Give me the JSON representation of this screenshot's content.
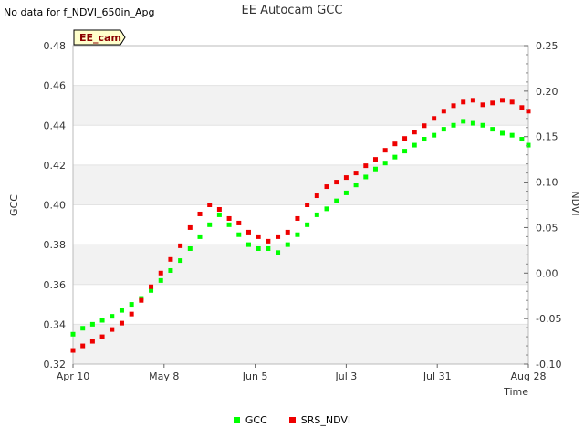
{
  "header": {
    "nodata_text": "No data for f_NDVI_650in_Apg",
    "title": "EE Autocam GCC"
  },
  "site_tag": "EE_cam",
  "colors": {
    "gcc": "#00ff00",
    "ndvi": "#ee0000",
    "band_fill": "#f2f2f2",
    "tag_fill": "#ffffcc",
    "tag_text": "#8b0000"
  },
  "chart_data": {
    "type": "scatter",
    "title": "EE Autocam GCC",
    "xlabel": "Time",
    "ylabel": "GCC",
    "y2label": "NDVI",
    "x_range": [
      "2024-04-10",
      "2024-08-28"
    ],
    "x_ticks": [
      "Apr 10",
      "May 8",
      "Jun 5",
      "Jul 3",
      "Jul 31",
      "Aug 28"
    ],
    "ylim": [
      0.32,
      0.48
    ],
    "y_ticks": [
      "0.32",
      "0.34",
      "0.36",
      "0.38",
      "0.40",
      "0.42",
      "0.44",
      "0.46",
      "0.48"
    ],
    "y2lim": [
      -0.1,
      0.25
    ],
    "y2_ticks": [
      "-0.10",
      "-0.05",
      "0.00",
      "0.05",
      "0.10",
      "0.15",
      "0.20",
      "0.25"
    ],
    "grid": true,
    "legend_position": "bottom",
    "series": [
      {
        "name": "GCC",
        "axis": "left",
        "points": [
          [
            0,
            0.335
          ],
          [
            3,
            0.338
          ],
          [
            6,
            0.34
          ],
          [
            9,
            0.342
          ],
          [
            12,
            0.344
          ],
          [
            15,
            0.347
          ],
          [
            18,
            0.35
          ],
          [
            21,
            0.353
          ],
          [
            24,
            0.357
          ],
          [
            27,
            0.362
          ],
          [
            30,
            0.367
          ],
          [
            33,
            0.372
          ],
          [
            36,
            0.378
          ],
          [
            39,
            0.384
          ],
          [
            42,
            0.39
          ],
          [
            45,
            0.395
          ],
          [
            48,
            0.39
          ],
          [
            51,
            0.385
          ],
          [
            54,
            0.38
          ],
          [
            57,
            0.378
          ],
          [
            60,
            0.378
          ],
          [
            63,
            0.376
          ],
          [
            66,
            0.38
          ],
          [
            69,
            0.385
          ],
          [
            72,
            0.39
          ],
          [
            75,
            0.395
          ],
          [
            78,
            0.398
          ],
          [
            81,
            0.402
          ],
          [
            84,
            0.406
          ],
          [
            87,
            0.41
          ],
          [
            90,
            0.414
          ],
          [
            93,
            0.418
          ],
          [
            96,
            0.421
          ],
          [
            99,
            0.424
          ],
          [
            102,
            0.427
          ],
          [
            105,
            0.43
          ],
          [
            108,
            0.433
          ],
          [
            111,
            0.435
          ],
          [
            114,
            0.438
          ],
          [
            117,
            0.44
          ],
          [
            120,
            0.442
          ],
          [
            123,
            0.441
          ],
          [
            126,
            0.44
          ],
          [
            129,
            0.438
          ],
          [
            132,
            0.436
          ],
          [
            135,
            0.435
          ],
          [
            138,
            0.433
          ],
          [
            140,
            0.43
          ]
        ]
      },
      {
        "name": "SRS_NDVI",
        "axis": "right",
        "points": [
          [
            0,
            -0.085
          ],
          [
            3,
            -0.08
          ],
          [
            6,
            -0.075
          ],
          [
            9,
            -0.07
          ],
          [
            12,
            -0.062
          ],
          [
            15,
            -0.055
          ],
          [
            18,
            -0.045
          ],
          [
            21,
            -0.03
          ],
          [
            24,
            -0.015
          ],
          [
            27,
            0.0
          ],
          [
            30,
            0.015
          ],
          [
            33,
            0.03
          ],
          [
            36,
            0.05
          ],
          [
            39,
            0.065
          ],
          [
            42,
            0.075
          ],
          [
            45,
            0.07
          ],
          [
            48,
            0.06
          ],
          [
            51,
            0.055
          ],
          [
            54,
            0.045
          ],
          [
            57,
            0.04
          ],
          [
            60,
            0.035
          ],
          [
            63,
            0.04
          ],
          [
            66,
            0.045
          ],
          [
            69,
            0.06
          ],
          [
            72,
            0.075
          ],
          [
            75,
            0.085
          ],
          [
            78,
            0.095
          ],
          [
            81,
            0.1
          ],
          [
            84,
            0.105
          ],
          [
            87,
            0.11
          ],
          [
            90,
            0.118
          ],
          [
            93,
            0.125
          ],
          [
            96,
            0.135
          ],
          [
            99,
            0.142
          ],
          [
            102,
            0.148
          ],
          [
            105,
            0.155
          ],
          [
            108,
            0.162
          ],
          [
            111,
            0.17
          ],
          [
            114,
            0.178
          ],
          [
            117,
            0.184
          ],
          [
            120,
            0.188
          ],
          [
            123,
            0.19
          ],
          [
            126,
            0.185
          ],
          [
            129,
            0.187
          ],
          [
            132,
            0.19
          ],
          [
            135,
            0.188
          ],
          [
            138,
            0.182
          ],
          [
            140,
            0.178
          ]
        ]
      }
    ]
  }
}
